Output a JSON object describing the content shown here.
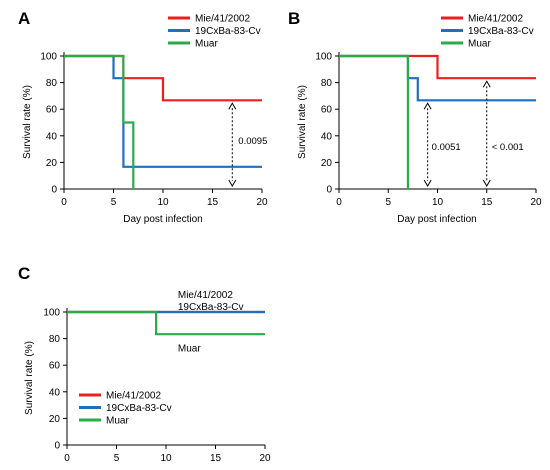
{
  "chart_data": [
    {
      "panel_label": "A",
      "type": "line",
      "step": true,
      "xlabel": "Day post infection",
      "ylabel": "Survival rate (%)",
      "xlim": [
        0,
        20
      ],
      "ylim": [
        0,
        100
      ],
      "xticks": [
        0,
        5,
        10,
        15,
        20
      ],
      "yticks": [
        0,
        20,
        40,
        60,
        80,
        100
      ],
      "grid": false,
      "legend_position": "top-right",
      "legend": [
        "Mie/41/2002",
        "19CxBa-83-Cv",
        "Muar"
      ],
      "series": [
        {
          "name": "Mie/41/2002",
          "color": "#e8201f",
          "x": [
            0,
            6,
            10,
            20
          ],
          "y": [
            100,
            83.3,
            66.7,
            66.7
          ]
        },
        {
          "name": "19CxBa-83-Cv",
          "color": "#1f6fbf",
          "x": [
            0,
            5,
            6,
            20
          ],
          "y": [
            100,
            83.3,
            16.7,
            16.7
          ]
        },
        {
          "name": "Muar",
          "color": "#2aab4a",
          "x": [
            0,
            6,
            7,
            7
          ],
          "y": [
            100,
            50,
            0,
            0
          ]
        }
      ],
      "annotations": [
        {
          "text": "0.0095",
          "x": 17,
          "y_from": 66.7,
          "y_to": 0
        }
      ]
    },
    {
      "panel_label": "B",
      "type": "line",
      "step": true,
      "xlabel": "Day post infection",
      "ylabel": "Survival rate (%)",
      "xlim": [
        0,
        20
      ],
      "ylim": [
        0,
        100
      ],
      "xticks": [
        0,
        5,
        10,
        15,
        20
      ],
      "yticks": [
        0,
        20,
        40,
        60,
        80,
        100
      ],
      "grid": false,
      "legend_position": "top-right",
      "legend": [
        "Mie/41/2002",
        "19CxBa-83-Cv",
        "Muar"
      ],
      "series": [
        {
          "name": "Mie/41/2002",
          "color": "#e8201f",
          "x": [
            0,
            10,
            20
          ],
          "y": [
            100,
            83.3,
            83.3
          ]
        },
        {
          "name": "19CxBa-83-Cv",
          "color": "#1f6fbf",
          "x": [
            0,
            7,
            8,
            20
          ],
          "y": [
            100,
            83.3,
            66.7,
            66.7
          ]
        },
        {
          "name": "Muar",
          "color": "#2aab4a",
          "x": [
            0,
            7,
            7
          ],
          "y": [
            100,
            0,
            0
          ]
        }
      ],
      "annotations": [
        {
          "text": "0.0051",
          "x": 9,
          "y_from": 66.7,
          "y_to": 0
        },
        {
          "text": "< 0.001",
          "x": 15,
          "y_from": 83.3,
          "y_to": 0
        }
      ]
    },
    {
      "panel_label": "C",
      "type": "line",
      "step": true,
      "xlabel": "",
      "ylabel": "Survival rate (%)",
      "xlim": [
        0,
        20
      ],
      "ylim": [
        0,
        100
      ],
      "xticks": [
        0,
        5,
        10,
        15,
        20
      ],
      "yticks": [
        0,
        20,
        40,
        60,
        80,
        100
      ],
      "grid": false,
      "legend_position": "bottom-left",
      "legend": [
        "Mie/41/2002",
        "19CxBa-83-Cv",
        "Muar"
      ],
      "series": [
        {
          "name": "Mie/41/2002",
          "color": "#e8201f",
          "x": [
            0,
            20
          ],
          "y": [
            100,
            100
          ]
        },
        {
          "name": "19CxBa-83-Cv",
          "color": "#1f6fbf",
          "x": [
            0,
            20
          ],
          "y": [
            100,
            100
          ]
        },
        {
          "name": "Muar",
          "color": "#2aab4a",
          "x": [
            0,
            9,
            20
          ],
          "y": [
            100,
            83.3,
            83.3
          ]
        }
      ],
      "line_labels": [
        {
          "text": "Mie/41/2002",
          "x": 11.2,
          "y": 113
        },
        {
          "text": "19CxBa-83-Cv",
          "x": 11.2,
          "y": 104
        },
        {
          "text": "Muar",
          "x": 11.2,
          "y": 73
        }
      ]
    }
  ]
}
